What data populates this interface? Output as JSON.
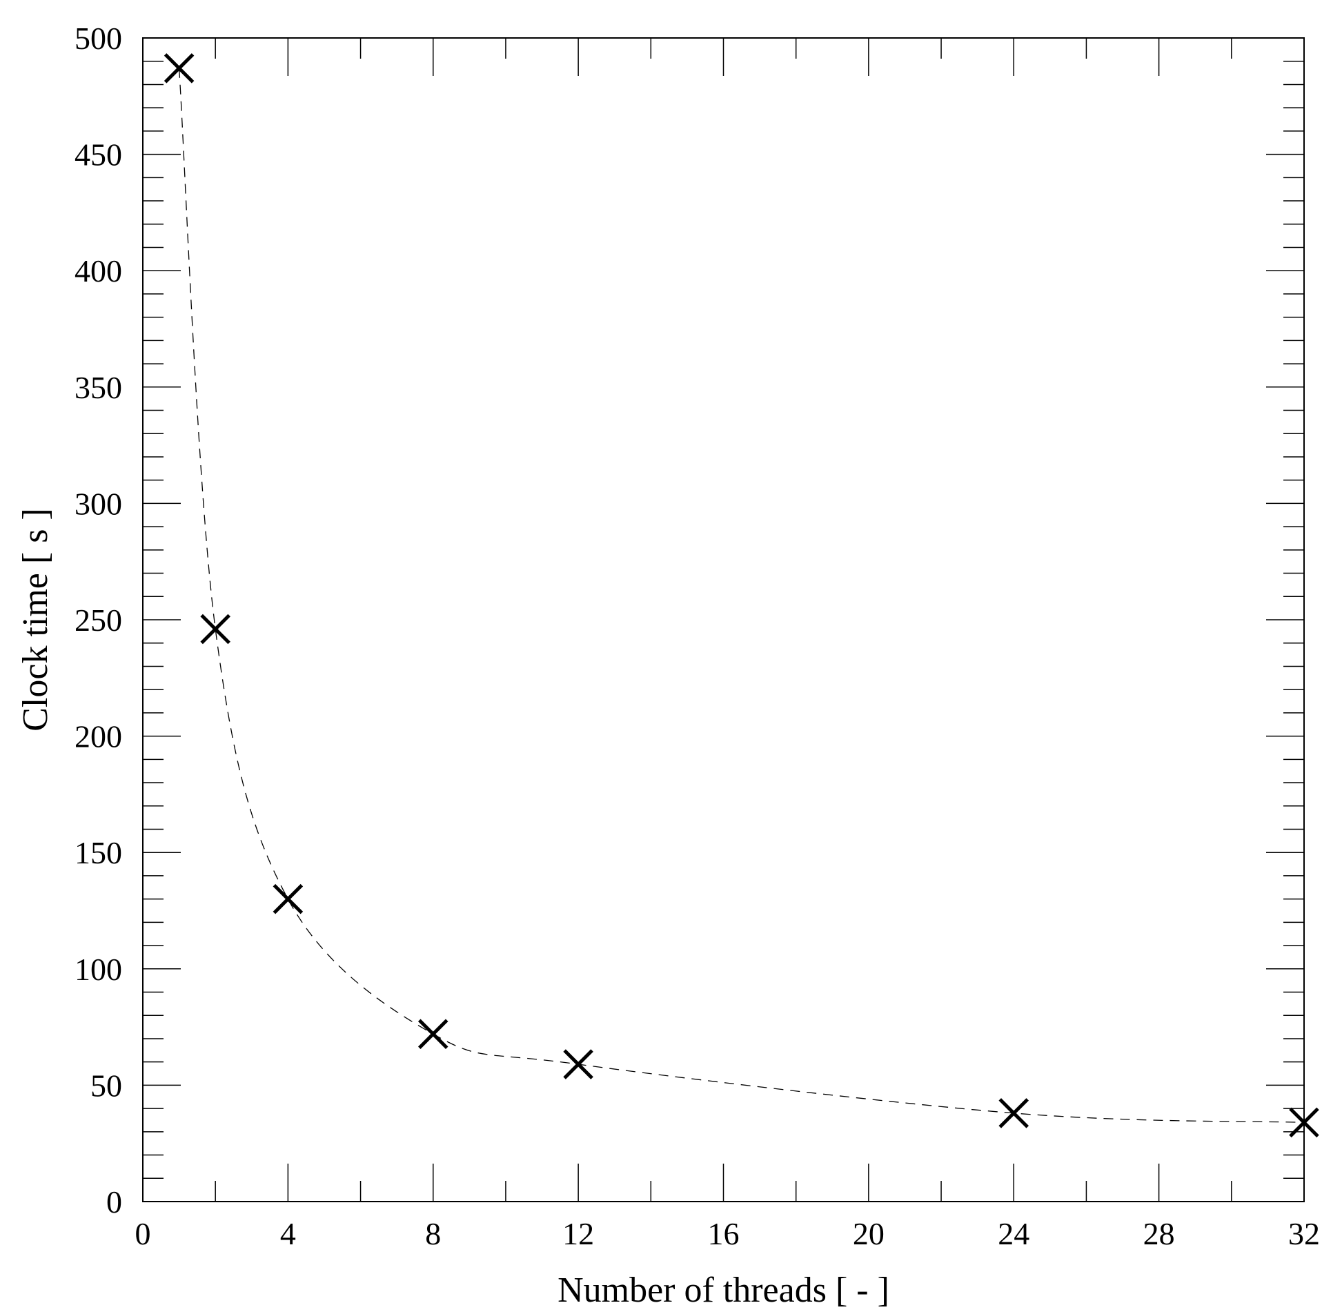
{
  "chart_data": {
    "type": "scatter",
    "xlabel": "Number of threads [ - ]",
    "ylabel": "Clock time [ s ]",
    "xlim": [
      0,
      32
    ],
    "ylim": [
      0,
      500
    ],
    "x_ticks": [
      0,
      4,
      8,
      12,
      16,
      20,
      24,
      28,
      32
    ],
    "x_tick_labels": [
      "0",
      "4",
      "8",
      "12",
      "16",
      "20",
      "24",
      "28",
      "32"
    ],
    "y_ticks": [
      0,
      50,
      100,
      150,
      200,
      250,
      300,
      350,
      400,
      450,
      500
    ],
    "y_tick_labels": [
      "0",
      "50",
      "100",
      "150",
      "200",
      "250",
      "300",
      "350",
      "400",
      "450",
      "500"
    ],
    "x_minor_step": 2,
    "y_minor_step": 10,
    "grid": false,
    "marker": "x",
    "line_style": "dashed",
    "series": [
      {
        "x": [
          1,
          2,
          4,
          8,
          12,
          24,
          32
        ],
        "y": [
          487,
          246,
          130,
          72,
          59,
          38,
          34
        ]
      }
    ],
    "colors": {
      "marker": "#000000",
      "line": "#000000",
      "axes": "#000000",
      "background": "#ffffff"
    }
  }
}
